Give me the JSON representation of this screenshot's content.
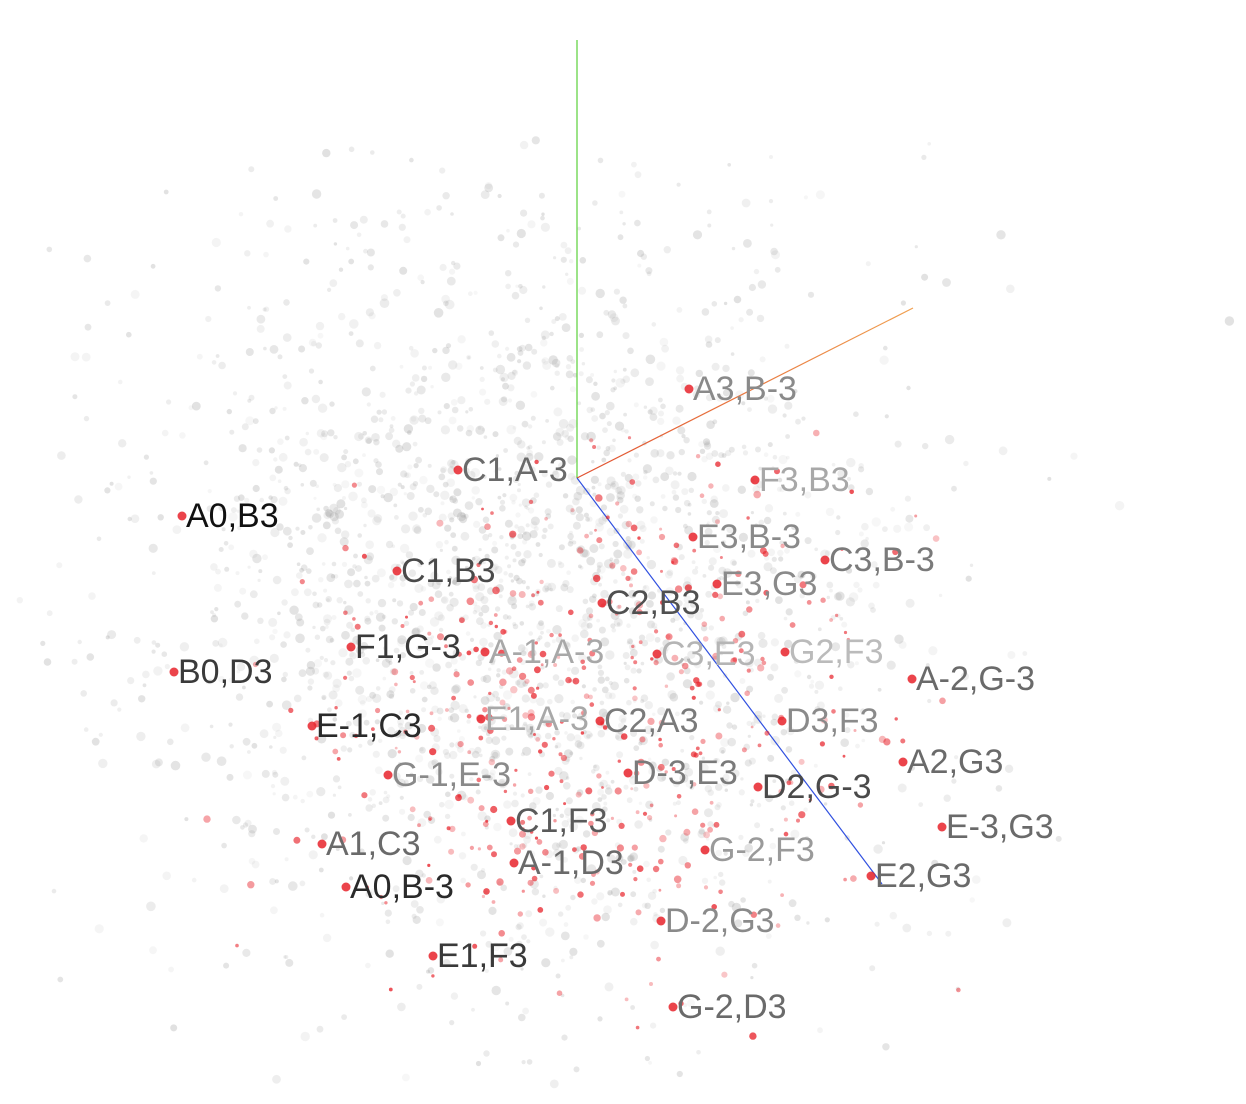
{
  "colors": {
    "background": "#ffffff",
    "gray_point": "#9a9a9a",
    "red_point": "#e8232b",
    "axis_x": "#e05030",
    "axis_y": "#5ad03a",
    "axis_z": "#3050e0",
    "axis_extra": "#f0a050"
  },
  "labels": [
    {
      "text": "A3,B-3",
      "shade": "#8a8a8a"
    },
    {
      "text": "C1,A-3",
      "shade": "#6a6a6a"
    },
    {
      "text": "F3,B3",
      "shade": "#a8a8a8"
    },
    {
      "text": "A0,B3",
      "shade": "#111111"
    },
    {
      "text": "E3,B-3",
      "shade": "#8a8a8a"
    },
    {
      "text": "C3,B-3",
      "shade": "#7a7a7a"
    },
    {
      "text": "C1,B3",
      "shade": "#4a4a4a"
    },
    {
      "text": "E3,G3",
      "shade": "#8a8a8a"
    },
    {
      "text": "C2,B3",
      "shade": "#505050"
    },
    {
      "text": "F1,G-3",
      "shade": "#3a3a3a"
    },
    {
      "text": "A-1,A-3",
      "shade": "#a8a8a8"
    },
    {
      "text": "C3,E3",
      "shade": "#b5b5b5"
    },
    {
      "text": "G2,F3",
      "shade": "#bbbbbb"
    },
    {
      "text": "B0,D3",
      "shade": "#3a3a3a"
    },
    {
      "text": "A-2,G-3",
      "shade": "#6a6a6a"
    },
    {
      "text": "E-1,C3",
      "shade": "#2a2a2a"
    },
    {
      "text": "E1,A-3",
      "shade": "#a8a8a8"
    },
    {
      "text": "C2,A3",
      "shade": "#7a7a7a"
    },
    {
      "text": "D3,F3",
      "shade": "#8a8a8a"
    },
    {
      "text": "A2,G3",
      "shade": "#6a6a6a"
    },
    {
      "text": "G-1,E-3",
      "shade": "#8a8a8a"
    },
    {
      "text": "D-3,E3",
      "shade": "#7a7a7a"
    },
    {
      "text": "D2,G-3",
      "shade": "#4a4a4a"
    },
    {
      "text": "C1,F3",
      "shade": "#5a5a5a"
    },
    {
      "text": "E-3,G3",
      "shade": "#6a6a6a"
    },
    {
      "text": "A1,C3",
      "shade": "#6a6a6a"
    },
    {
      "text": "G-2,F3",
      "shade": "#9a9a9a"
    },
    {
      "text": "A-1,D3",
      "shade": "#6a6a6a"
    },
    {
      "text": "E2,G3",
      "shade": "#6a6a6a"
    },
    {
      "text": "A0,B-3",
      "shade": "#2a2a2a"
    },
    {
      "text": "D-2,G3",
      "shade": "#8a8a8a"
    },
    {
      "text": "E1,F3",
      "shade": "#3a3a3a"
    },
    {
      "text": "G-2,D3",
      "shade": "#6a6a6a"
    }
  ]
}
